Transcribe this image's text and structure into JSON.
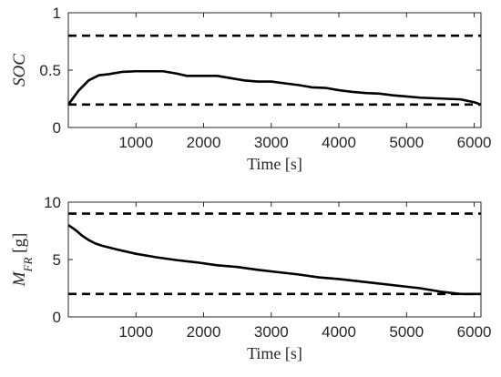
{
  "chart_data": [
    {
      "type": "line",
      "xlabel": "Time [s]",
      "ylabel": "SOC",
      "ylabel_subscript": "",
      "ylabel_suffix": "",
      "xlim": [
        0,
        6100
      ],
      "ylim": [
        0,
        1
      ],
      "xticks": [
        1000,
        2000,
        3000,
        4000,
        5000,
        6000
      ],
      "yticks": [
        0,
        0.5,
        1
      ],
      "ytick_labels": [
        "0",
        "0.5",
        "1"
      ],
      "grid": false,
      "series": [
        {
          "style": "solid",
          "x": [
            0,
            150,
            300,
            450,
            600,
            800,
            1000,
            1200,
            1400,
            1600,
            1750,
            1900,
            2000,
            2200,
            2400,
            2600,
            2800,
            3000,
            3200,
            3400,
            3600,
            3800,
            4000,
            4200,
            4400,
            4600,
            4800,
            5000,
            5200,
            5400,
            5600,
            5800,
            6000,
            6100
          ],
          "y": [
            0.2,
            0.32,
            0.41,
            0.455,
            0.465,
            0.485,
            0.49,
            0.49,
            0.49,
            0.47,
            0.45,
            0.45,
            0.45,
            0.45,
            0.43,
            0.41,
            0.4,
            0.4,
            0.385,
            0.37,
            0.35,
            0.345,
            0.325,
            0.31,
            0.3,
            0.295,
            0.28,
            0.27,
            0.26,
            0.255,
            0.25,
            0.245,
            0.22,
            0.2
          ]
        },
        {
          "style": "dashed",
          "x": [
            0,
            6100
          ],
          "y": [
            0.8,
            0.8
          ]
        },
        {
          "style": "dashed",
          "x": [
            0,
            6100
          ],
          "y": [
            0.2,
            0.2
          ]
        }
      ]
    },
    {
      "type": "line",
      "xlabel": "Time [s]",
      "ylabel": "M",
      "ylabel_subscript": "FR",
      "ylabel_suffix": " [g]",
      "xlim": [
        0,
        6100
      ],
      "ylim": [
        0,
        10
      ],
      "xticks": [
        1000,
        2000,
        3000,
        4000,
        5000,
        6000
      ],
      "yticks": [
        0,
        5,
        10
      ],
      "ytick_labels": [
        "0",
        "5",
        "10"
      ],
      "grid": false,
      "series": [
        {
          "style": "solid",
          "x": [
            0,
            100,
            200,
            300,
            400,
            500,
            700,
            1000,
            1300,
            1600,
            1900,
            2200,
            2500,
            2800,
            3100,
            3400,
            3700,
            4000,
            4300,
            4600,
            4900,
            5200,
            5500,
            5800,
            6000,
            6100
          ],
          "y": [
            8.0,
            7.6,
            7.1,
            6.7,
            6.4,
            6.2,
            5.9,
            5.5,
            5.2,
            4.95,
            4.75,
            4.5,
            4.35,
            4.1,
            3.9,
            3.7,
            3.45,
            3.3,
            3.1,
            2.9,
            2.7,
            2.5,
            2.2,
            2.0,
            2.0,
            2.0
          ]
        },
        {
          "style": "dashed",
          "x": [
            0,
            6100
          ],
          "y": [
            9,
            9
          ]
        },
        {
          "style": "dashed",
          "x": [
            0,
            6100
          ],
          "y": [
            2,
            2
          ]
        }
      ]
    }
  ]
}
